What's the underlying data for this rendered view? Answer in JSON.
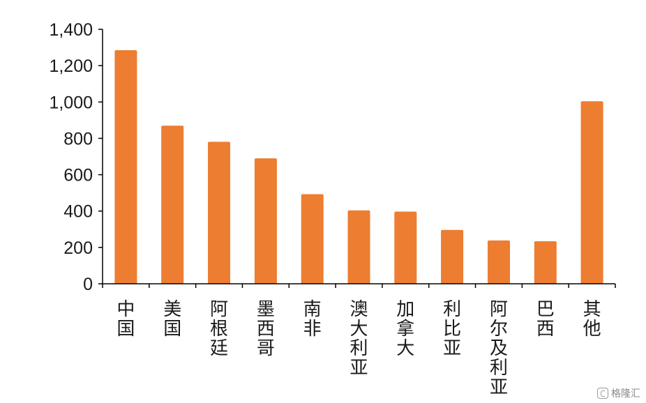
{
  "chart_data": {
    "type": "bar",
    "categories": [
      "中国",
      "美国",
      "阿根廷",
      "墨西哥",
      "南非",
      "澳大利亚",
      "加拿大",
      "利比亚",
      "阿尔及利亚",
      "巴西",
      "其他"
    ],
    "values": [
      1285,
      870,
      781,
      690,
      493,
      404,
      397,
      296,
      238,
      234,
      1004
    ],
    "yticks": [
      "0",
      "200",
      "400",
      "600",
      "800",
      "1,000",
      "1,200",
      "1,400"
    ],
    "ylim": [
      0,
      1400
    ],
    "title": "",
    "xlabel": "",
    "ylabel": "",
    "grid": false,
    "legend": "none",
    "colors": {
      "bar": "#ED7D31",
      "axis": "#000000",
      "text": "#1a1a1a"
    }
  },
  "watermark": {
    "text": "格隆汇",
    "icon": "gelonghui-logo-icon"
  }
}
